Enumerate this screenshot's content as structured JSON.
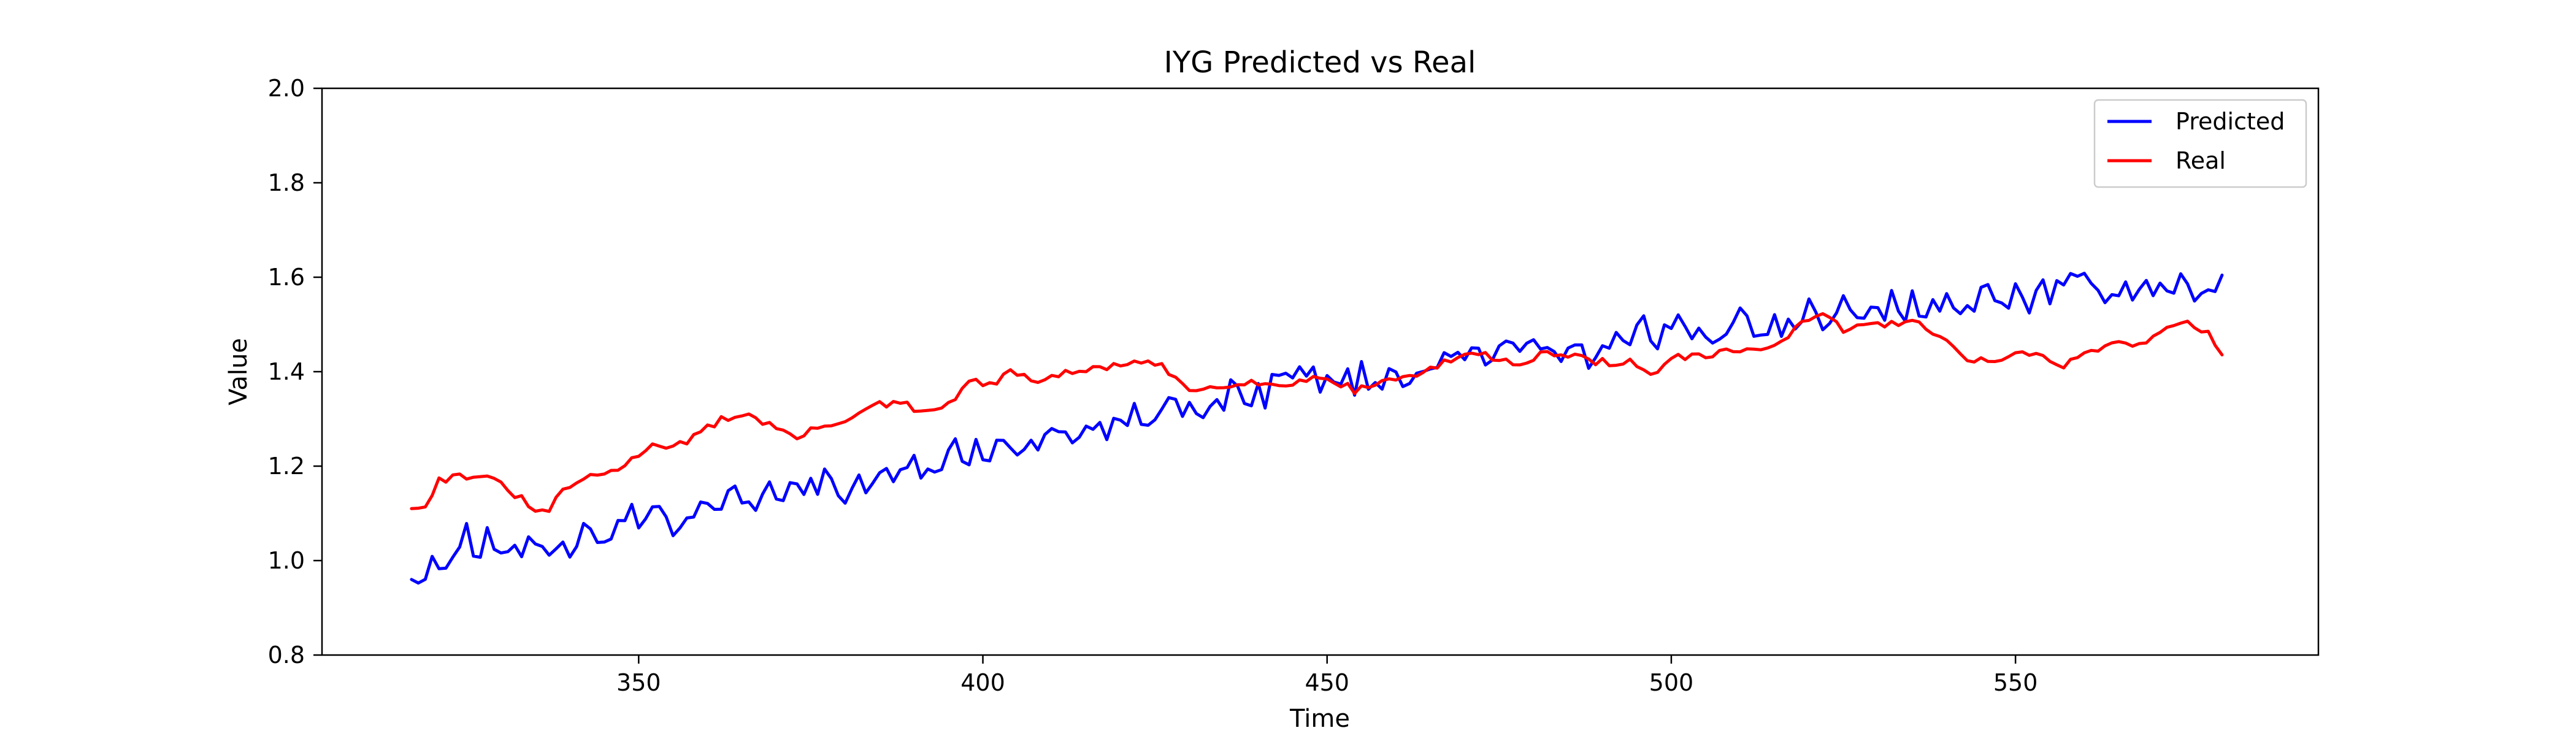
{
  "chart_data": {
    "type": "line",
    "title": "IYG Predicted vs Real",
    "xlabel": "Time",
    "ylabel": "Value",
    "xlim": [
      304,
      594
    ],
    "ylim": [
      0.8,
      2.0
    ],
    "xticks": [
      350,
      400,
      450,
      500,
      550
    ],
    "yticks": [
      0.8,
      1.0,
      1.2,
      1.4,
      1.6,
      1.8,
      2.0
    ],
    "grid": false,
    "legend_position": "top-right",
    "x_start": 317,
    "x_end": 580,
    "series": [
      {
        "name": "Predicted",
        "color": "#0000ff",
        "anchors": [
          [
            317,
            0.96
          ],
          [
            320,
            1.0
          ],
          [
            325,
            1.05
          ],
          [
            330,
            1.02
          ],
          [
            335,
            1.03
          ],
          [
            340,
            1.04
          ],
          [
            345,
            1.07
          ],
          [
            350,
            1.1
          ],
          [
            355,
            1.08
          ],
          [
            360,
            1.12
          ],
          [
            365,
            1.13
          ],
          [
            370,
            1.15
          ],
          [
            375,
            1.17
          ],
          [
            380,
            1.15
          ],
          [
            385,
            1.18
          ],
          [
            390,
            1.2
          ],
          [
            395,
            1.22
          ],
          [
            400,
            1.23
          ],
          [
            405,
            1.24
          ],
          [
            410,
            1.25
          ],
          [
            415,
            1.27
          ],
          [
            420,
            1.3
          ],
          [
            425,
            1.31
          ],
          [
            430,
            1.33
          ],
          [
            435,
            1.35
          ],
          [
            440,
            1.35
          ],
          [
            445,
            1.37
          ],
          [
            450,
            1.38
          ],
          [
            455,
            1.39
          ],
          [
            460,
            1.4
          ],
          [
            465,
            1.4
          ],
          [
            470,
            1.43
          ],
          [
            475,
            1.43
          ],
          [
            480,
            1.44
          ],
          [
            485,
            1.44
          ],
          [
            490,
            1.45
          ],
          [
            495,
            1.48
          ],
          [
            500,
            1.49
          ],
          [
            505,
            1.5
          ],
          [
            510,
            1.5
          ],
          [
            515,
            1.51
          ],
          [
            520,
            1.52
          ],
          [
            525,
            1.53
          ],
          [
            530,
            1.53
          ],
          [
            535,
            1.54
          ],
          [
            540,
            1.55
          ],
          [
            545,
            1.55
          ],
          [
            550,
            1.56
          ],
          [
            555,
            1.57
          ],
          [
            560,
            1.57
          ],
          [
            565,
            1.57
          ],
          [
            570,
            1.58
          ],
          [
            575,
            1.58
          ],
          [
            580,
            1.58
          ]
        ],
        "noise": 0.04
      },
      {
        "name": "Real",
        "color": "#ff0000",
        "anchors": [
          [
            317,
            1.11
          ],
          [
            319,
            1.12
          ],
          [
            321,
            1.17
          ],
          [
            324,
            1.18
          ],
          [
            327,
            1.18
          ],
          [
            330,
            1.16
          ],
          [
            333,
            1.13
          ],
          [
            335,
            1.1
          ],
          [
            337,
            1.11
          ],
          [
            340,
            1.16
          ],
          [
            344,
            1.18
          ],
          [
            348,
            1.2
          ],
          [
            352,
            1.25
          ],
          [
            355,
            1.24
          ],
          [
            358,
            1.26
          ],
          [
            362,
            1.3
          ],
          [
            366,
            1.31
          ],
          [
            370,
            1.28
          ],
          [
            373,
            1.26
          ],
          [
            376,
            1.28
          ],
          [
            380,
            1.3
          ],
          [
            385,
            1.33
          ],
          [
            389,
            1.33
          ],
          [
            391,
            1.31
          ],
          [
            395,
            1.33
          ],
          [
            398,
            1.38
          ],
          [
            401,
            1.37
          ],
          [
            404,
            1.4
          ],
          [
            407,
            1.38
          ],
          [
            410,
            1.39
          ],
          [
            414,
            1.4
          ],
          [
            418,
            1.41
          ],
          [
            422,
            1.42
          ],
          [
            426,
            1.41
          ],
          [
            430,
            1.36
          ],
          [
            434,
            1.37
          ],
          [
            438,
            1.38
          ],
          [
            442,
            1.37
          ],
          [
            446,
            1.38
          ],
          [
            450,
            1.39
          ],
          [
            454,
            1.36
          ],
          [
            458,
            1.38
          ],
          [
            462,
            1.39
          ],
          [
            466,
            1.41
          ],
          [
            470,
            1.44
          ],
          [
            474,
            1.43
          ],
          [
            478,
            1.42
          ],
          [
            482,
            1.44
          ],
          [
            486,
            1.43
          ],
          [
            490,
            1.42
          ],
          [
            494,
            1.42
          ],
          [
            497,
            1.39
          ],
          [
            500,
            1.43
          ],
          [
            504,
            1.43
          ],
          [
            508,
            1.44
          ],
          [
            512,
            1.45
          ],
          [
            516,
            1.46
          ],
          [
            519,
            1.5
          ],
          [
            522,
            1.52
          ],
          [
            525,
            1.49
          ],
          [
            529,
            1.5
          ],
          [
            532,
            1.5
          ],
          [
            536,
            1.51
          ],
          [
            540,
            1.46
          ],
          [
            543,
            1.43
          ],
          [
            546,
            1.42
          ],
          [
            550,
            1.44
          ],
          [
            554,
            1.43
          ],
          [
            557,
            1.41
          ],
          [
            560,
            1.44
          ],
          [
            564,
            1.46
          ],
          [
            568,
            1.46
          ],
          [
            572,
            1.49
          ],
          [
            575,
            1.51
          ],
          [
            578,
            1.48
          ],
          [
            580,
            1.44
          ]
        ],
        "noise": 0.008
      }
    ]
  }
}
